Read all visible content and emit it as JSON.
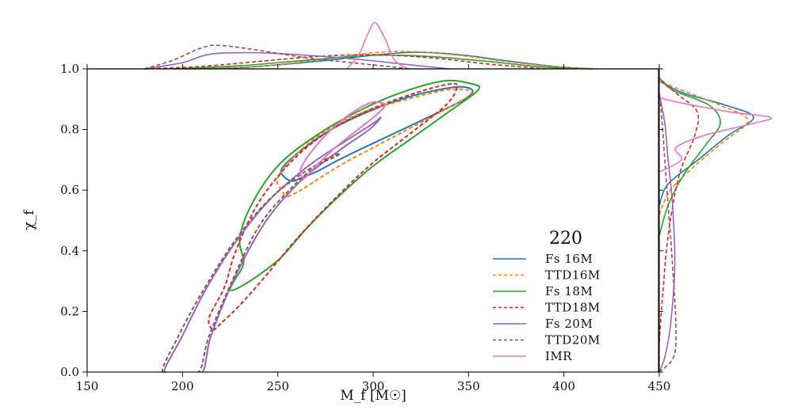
{
  "chart_data": {
    "type": "line",
    "title": "",
    "xlabel": "M_f [M☉]",
    "ylabel": "χ_f",
    "xlim": [
      150,
      450
    ],
    "ylim": [
      0.0,
      1.0
    ],
    "x_ticks": [
      "150",
      "200",
      "250",
      "300",
      "350",
      "400",
      "450"
    ],
    "y_ticks": [
      "0.0",
      "0.2",
      "0.4",
      "0.6",
      "0.8",
      "1.0"
    ],
    "grid": false,
    "legend": {
      "title": "220",
      "position": "lower-right"
    },
    "series": [
      {
        "name": "Fs 16M",
        "color": "#1f77b4",
        "dash": "solid",
        "contours": [
          [
            [
              258,
              0.63
            ],
            [
              262,
              0.64
            ],
            [
              270,
              0.66
            ],
            [
              282,
              0.7
            ],
            [
              295,
              0.74
            ],
            [
              312,
              0.79
            ],
            [
              332,
              0.85
            ],
            [
              348,
              0.9
            ],
            [
              352,
              0.93
            ],
            [
              343,
              0.94
            ],
            [
              320,
              0.91
            ],
            [
              298,
              0.86
            ],
            [
              278,
              0.8
            ],
            [
              262,
              0.73
            ],
            [
              252,
              0.67
            ],
            [
              254,
              0.64
            ],
            [
              258,
              0.63
            ]
          ]
        ],
        "marginal_x": [
          [
            200,
            0
          ],
          [
            230,
            0.02
          ],
          [
            270,
            0.12
          ],
          [
            300,
            0.22
          ],
          [
            322,
            0.27
          ],
          [
            345,
            0.23
          ],
          [
            370,
            0.13
          ],
          [
            395,
            0.04
          ],
          [
            415,
            0
          ]
        ],
        "marginal_y": [
          [
            0.55,
            0
          ],
          [
            0.62,
            0.08
          ],
          [
            0.7,
            0.35
          ],
          [
            0.78,
            0.62
          ],
          [
            0.84,
            0.85
          ],
          [
            0.88,
            0.6
          ],
          [
            0.92,
            0.22
          ],
          [
            0.96,
            0
          ]
        ]
      },
      {
        "name": "TTD16M",
        "color": "#ff7f0e",
        "dash": "dashed",
        "contours": [
          [
            [
              255,
              0.58
            ],
            [
              262,
              0.6
            ],
            [
              272,
              0.64
            ],
            [
              285,
              0.69
            ],
            [
              300,
              0.74
            ],
            [
              318,
              0.8
            ],
            [
              336,
              0.86
            ],
            [
              350,
              0.91
            ],
            [
              350,
              0.93
            ],
            [
              338,
              0.93
            ],
            [
              318,
              0.9
            ],
            [
              296,
              0.86
            ],
            [
              276,
              0.8
            ],
            [
              260,
              0.72
            ],
            [
              250,
              0.64
            ],
            [
              252,
              0.6
            ],
            [
              255,
              0.58
            ]
          ]
        ],
        "marginal_x": [
          [
            205,
            0
          ],
          [
            240,
            0.04
          ],
          [
            275,
            0.16
          ],
          [
            300,
            0.26
          ],
          [
            320,
            0.28
          ],
          [
            345,
            0.22
          ],
          [
            372,
            0.11
          ],
          [
            398,
            0.03
          ],
          [
            418,
            0
          ]
        ],
        "marginal_y": [
          [
            0.52,
            0
          ],
          [
            0.6,
            0.1
          ],
          [
            0.68,
            0.32
          ],
          [
            0.76,
            0.58
          ],
          [
            0.83,
            0.8
          ],
          [
            0.88,
            0.55
          ],
          [
            0.93,
            0.2
          ],
          [
            0.96,
            0
          ]
        ]
      },
      {
        "name": "Fs 18M",
        "color": "#2ca02c",
        "dash": "solid",
        "contours": [
          [
            [
              225,
              0.27
            ],
            [
              230,
              0.28
            ],
            [
              240,
              0.32
            ],
            [
              252,
              0.38
            ],
            [
              266,
              0.48
            ],
            [
              282,
              0.58
            ],
            [
              300,
              0.68
            ],
            [
              320,
              0.77
            ],
            [
              340,
              0.86
            ],
            [
              355,
              0.93
            ],
            [
              352,
              0.95
            ],
            [
              337,
              0.96
            ],
            [
              314,
              0.92
            ],
            [
              292,
              0.86
            ],
            [
              270,
              0.78
            ],
            [
              250,
              0.68
            ],
            [
              236,
              0.55
            ],
            [
              230,
              0.44
            ],
            [
              232,
              0.36
            ],
            [
              227,
              0.3
            ],
            [
              225,
              0.27
            ]
          ]
        ],
        "marginal_x": [
          [
            195,
            0
          ],
          [
            230,
            0.05
          ],
          [
            265,
            0.14
          ],
          [
            300,
            0.22
          ],
          [
            330,
            0.2
          ],
          [
            360,
            0.12
          ],
          [
            385,
            0.04
          ],
          [
            405,
            0
          ]
        ],
        "marginal_y": [
          [
            0.45,
            0
          ],
          [
            0.55,
            0.08
          ],
          [
            0.65,
            0.22
          ],
          [
            0.75,
            0.42
          ],
          [
            0.82,
            0.55
          ],
          [
            0.88,
            0.45
          ],
          [
            0.93,
            0.12
          ],
          [
            0.97,
            0
          ]
        ]
      },
      {
        "name": "TTD18M",
        "color": "#d62728",
        "dash": "dashed",
        "contours": [
          [
            [
              216,
              0.14
            ],
            [
              220,
              0.16
            ],
            [
              230,
              0.22
            ],
            [
              244,
              0.32
            ],
            [
              260,
              0.44
            ],
            [
              278,
              0.56
            ],
            [
              298,
              0.68
            ],
            [
              318,
              0.78
            ],
            [
              338,
              0.88
            ],
            [
              344,
              0.94
            ],
            [
              340,
              0.95
            ],
            [
              322,
              0.92
            ],
            [
              300,
              0.87
            ],
            [
              278,
              0.8
            ],
            [
              258,
              0.7
            ],
            [
              240,
              0.56
            ],
            [
              228,
              0.4
            ],
            [
              222,
              0.28
            ],
            [
              214,
              0.18
            ],
            [
              216,
              0.14
            ]
          ]
        ],
        "marginal_x": [
          [
            180,
            0
          ],
          [
            210,
            0.04
          ],
          [
            240,
            0.12
          ],
          [
            270,
            0.2
          ],
          [
            300,
            0.23
          ],
          [
            330,
            0.18
          ],
          [
            360,
            0.08
          ],
          [
            390,
            0
          ]
        ],
        "marginal_y": [
          [
            0.1,
            0
          ],
          [
            0.25,
            0.03
          ],
          [
            0.45,
            0.08
          ],
          [
            0.65,
            0.18
          ],
          [
            0.78,
            0.32
          ],
          [
            0.86,
            0.34
          ],
          [
            0.92,
            0.15
          ],
          [
            0.97,
            0
          ]
        ]
      },
      {
        "name": "Fs 20M",
        "color": "#9467bd",
        "dash": "solid",
        "contours": [
          [
            [
              191,
              0.0
            ],
            [
              200,
              0.12
            ],
            [
              212,
              0.27
            ],
            [
              228,
              0.43
            ],
            [
              246,
              0.57
            ],
            [
              266,
              0.68
            ],
            [
              285,
              0.76
            ],
            [
              300,
              0.82
            ],
            [
              304,
              0.84
            ],
            [
              298,
              0.8
            ],
            [
              282,
              0.73
            ],
            [
              262,
              0.63
            ],
            [
              244,
              0.5
            ],
            [
              228,
              0.32
            ],
            [
              215,
              0.12
            ],
            [
              210,
              0.0
            ]
          ]
        ],
        "marginal_x": [
          [
            180,
            0
          ],
          [
            200,
            0.1
          ],
          [
            215,
            0.24
          ],
          [
            240,
            0.26
          ],
          [
            265,
            0.22
          ],
          [
            290,
            0.16
          ],
          [
            315,
            0.08
          ],
          [
            340,
            0
          ]
        ],
        "marginal_y": [
          [
            0.0,
            0
          ],
          [
            0.05,
            0.05
          ],
          [
            0.15,
            0.1
          ],
          [
            0.35,
            0.14
          ],
          [
            0.55,
            0.12
          ],
          [
            0.7,
            0.08
          ],
          [
            0.82,
            0.05
          ],
          [
            0.92,
            0
          ]
        ]
      },
      {
        "name": "TTD20M",
        "color": "#8c564b",
        "dash": "dashed",
        "contours": [
          [
            [
              190,
              0.0
            ],
            [
              198,
              0.12
            ],
            [
              210,
              0.26
            ],
            [
              226,
              0.42
            ],
            [
              244,
              0.56
            ],
            [
              264,
              0.66
            ],
            [
              280,
              0.71
            ],
            [
              282,
              0.72
            ],
            [
              272,
              0.69
            ],
            [
              256,
              0.6
            ],
            [
              240,
              0.48
            ],
            [
              226,
              0.3
            ],
            [
              214,
              0.12
            ],
            [
              208,
              0.0
            ]
          ]
        ],
        "marginal_x": [
          [
            180,
            0
          ],
          [
            195,
            0.14
          ],
          [
            210,
            0.34
          ],
          [
            220,
            0.38
          ],
          [
            240,
            0.3
          ],
          [
            265,
            0.18
          ],
          [
            295,
            0.08
          ],
          [
            320,
            0
          ]
        ],
        "marginal_y": [
          [
            0.0,
            0
          ],
          [
            0.05,
            0.13
          ],
          [
            0.15,
            0.15
          ],
          [
            0.35,
            0.12
          ],
          [
            0.55,
            0.08
          ],
          [
            0.7,
            0.05
          ],
          [
            0.85,
            0.02
          ],
          [
            0.92,
            0
          ]
        ]
      },
      {
        "name": "IMR",
        "color": "#e377c2",
        "dash": "solid",
        "contours": [
          [
            [
              264,
              0.64
            ],
            [
              270,
              0.68
            ],
            [
              280,
              0.74
            ],
            [
              292,
              0.8
            ],
            [
              302,
              0.85
            ],
            [
              306,
              0.88
            ],
            [
              300,
              0.89
            ],
            [
              290,
              0.86
            ],
            [
              278,
              0.8
            ],
            [
              268,
              0.73
            ],
            [
              262,
              0.67
            ],
            [
              264,
              0.64
            ]
          ]
        ],
        "marginal_x": [
          [
            286,
            0
          ],
          [
            292,
            0.2
          ],
          [
            297,
            0.55
          ],
          [
            301,
            0.75
          ],
          [
            306,
            0.5
          ],
          [
            311,
            0.15
          ],
          [
            318,
            0
          ]
        ],
        "marginal_y": [
          [
            0.66,
            0
          ],
          [
            0.7,
            0.2
          ],
          [
            0.74,
            0.15
          ],
          [
            0.78,
            0.4
          ],
          [
            0.82,
            0.85
          ],
          [
            0.84,
            1.0
          ],
          [
            0.86,
            0.6
          ],
          [
            0.9,
            0.05
          ],
          [
            0.92,
            0
          ]
        ]
      }
    ]
  }
}
